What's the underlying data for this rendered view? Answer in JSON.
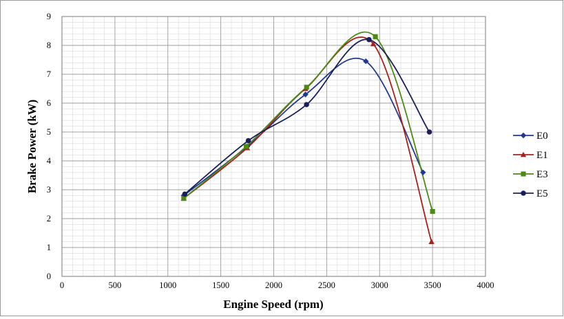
{
  "chart_data": {
    "type": "line",
    "title": "",
    "xlabel": "Engine Speed (rpm)",
    "ylabel": "Brake Power (kW)",
    "xlim": [
      0,
      4000
    ],
    "ylim": [
      0,
      9
    ],
    "x_ticks": [
      "0",
      "500",
      "1000",
      "1500",
      "2000",
      "2500",
      "3000",
      "3500",
      "4000"
    ],
    "y_ticks": [
      "0",
      "1",
      "2",
      "3",
      "4",
      "5",
      "6",
      "7",
      "8",
      "9"
    ],
    "grid": true,
    "legend_position": "right",
    "series": [
      {
        "name": "E0",
        "color": "#1F3A93",
        "marker": "diamond",
        "x": [
          1150,
          1750,
          2300,
          2870,
          3410
        ],
        "y": [
          2.8,
          4.5,
          6.3,
          7.45,
          3.6
        ]
      },
      {
        "name": "E1",
        "color": "#A8201A",
        "marker": "triangle",
        "x": [
          1150,
          1750,
          2300,
          2940,
          3490
        ],
        "y": [
          2.7,
          4.45,
          6.5,
          8.05,
          1.2
        ]
      },
      {
        "name": "E3",
        "color": "#4C8A13",
        "marker": "square",
        "x": [
          1150,
          1740,
          2310,
          2960,
          3500
        ],
        "y": [
          2.7,
          4.5,
          6.55,
          8.3,
          2.25
        ]
      },
      {
        "name": "E5",
        "color": "#1A1F5C",
        "marker": "circle",
        "x": [
          1160,
          1760,
          2310,
          2900,
          3470
        ],
        "y": [
          2.85,
          4.7,
          5.95,
          8.2,
          5.0
        ]
      }
    ]
  }
}
